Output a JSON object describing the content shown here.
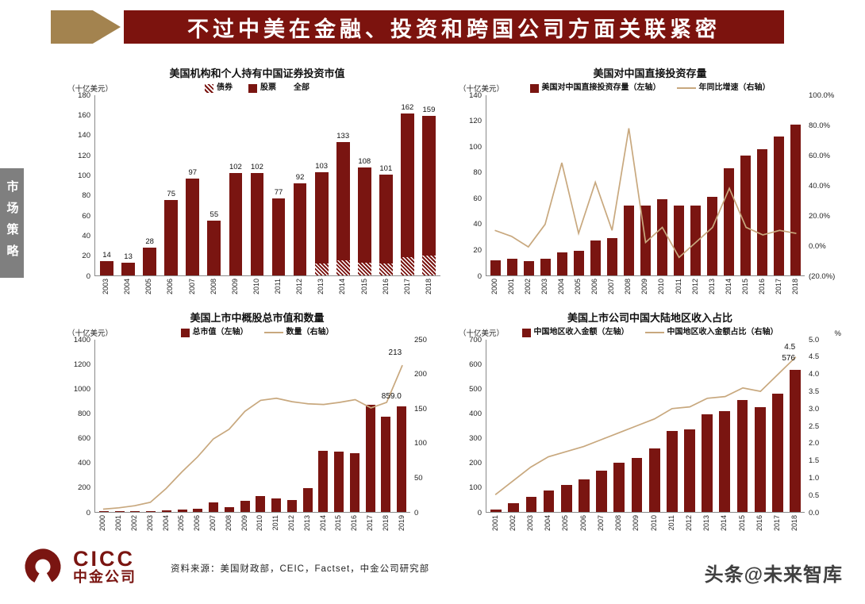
{
  "colors": {
    "maroon": "#7A1511",
    "tan": "#C8A87E",
    "banner": "#7C130E",
    "arrow": "#A3834F",
    "sidebar": "#7F7F7F"
  },
  "header": {
    "title": "不过中美在金融、投资和跨国公司方面关联紧密"
  },
  "sidebar": {
    "label": "市场策略"
  },
  "footer": {
    "logo_en": "CICC",
    "logo_cn": "中金公司",
    "source": "资料来源：美国财政部，CEIC，Factset，中金公司研究部",
    "watermark": "头条@未来智库"
  },
  "chart_data": [
    {
      "type": "bar",
      "title": "美国机构和个人持有中国证券投资市值",
      "unit_left": "（十亿美元）",
      "legend": [
        {
          "label": "债券",
          "swatch": "hatch"
        },
        {
          "label": "股票",
          "swatch": "bar"
        },
        {
          "label": "全部",
          "swatch": "none"
        }
      ],
      "categories": [
        "2003",
        "2004",
        "2005",
        "2006",
        "2007",
        "2008",
        "2009",
        "2010",
        "2011",
        "2012",
        "2013",
        "2014",
        "2015",
        "2016",
        "2017",
        "2018"
      ],
      "bars": [
        14,
        13,
        28,
        75,
        97,
        55,
        102,
        102,
        77,
        92,
        103,
        133,
        108,
        101,
        162,
        159
      ],
      "bonds": [
        0,
        0,
        0,
        0,
        0,
        0,
        0,
        0,
        0,
        0,
        12,
        15,
        13,
        12,
        18,
        20
      ],
      "bar_labels": true,
      "left": {
        "min": 0,
        "max": 180,
        "ticks": [
          0,
          20,
          40,
          60,
          80,
          100,
          120,
          140,
          160,
          180
        ]
      }
    },
    {
      "type": "bar+line",
      "title": "美国对中国直接投资存量",
      "unit_left": "（十亿美元）",
      "legend": [
        {
          "label": "美国对中国直接投资存量（左轴）",
          "swatch": "bar"
        },
        {
          "label": "年同比增速（右轴）",
          "swatch": "line"
        }
      ],
      "categories": [
        "2000",
        "2001",
        "2002",
        "2003",
        "2004",
        "2005",
        "2006",
        "2007",
        "2008",
        "2009",
        "2010",
        "2011",
        "2012",
        "2013",
        "2014",
        "2015",
        "2016",
        "2017",
        "2018"
      ],
      "bars": [
        12,
        13,
        11,
        13,
        18,
        19,
        27,
        29,
        54,
        54,
        59,
        54,
        54,
        61,
        83,
        93,
        98,
        108,
        117
      ],
      "line": [
        10,
        6,
        -1,
        14,
        55,
        8,
        42,
        10,
        78,
        2,
        12,
        -8,
        2,
        12,
        38,
        12,
        7,
        10,
        8
      ],
      "left": {
        "min": 0,
        "max": 140,
        "ticks": [
          0,
          20,
          40,
          60,
          80,
          100,
          120,
          140
        ]
      },
      "right": {
        "min": -20,
        "max": 100,
        "ticks": [
          100,
          80,
          60,
          40,
          20,
          0,
          -20
        ],
        "labels": [
          "100.0%",
          "80.0%",
          "60.0%",
          "40.0%",
          "20.0%",
          "0.0%",
          "(20.0%)"
        ]
      }
    },
    {
      "type": "bar+line",
      "title": "美国上市中概股总市值和数量",
      "unit_left": "（十亿美元）",
      "legend": [
        {
          "label": "总市值（左轴）",
          "swatch": "bar"
        },
        {
          "label": "数量（右轴）",
          "swatch": "line"
        }
      ],
      "categories": [
        "2000",
        "2001",
        "2002",
        "2003",
        "2004",
        "2005",
        "2006",
        "2007",
        "2008",
        "2009",
        "2010",
        "2011",
        "2012",
        "2013",
        "2014",
        "2015",
        "2016",
        "2017",
        "2018",
        "2019"
      ],
      "bars": [
        6,
        5,
        5,
        8,
        14,
        18,
        28,
        80,
        42,
        88,
        130,
        112,
        98,
        192,
        500,
        492,
        478,
        868,
        772,
        859
      ],
      "line": [
        4,
        6,
        9,
        14,
        34,
        58,
        80,
        106,
        120,
        146,
        162,
        165,
        160,
        157,
        156,
        159,
        163,
        151,
        159,
        213
      ],
      "left": {
        "min": 0,
        "max": 1400,
        "ticks": [
          0,
          200,
          400,
          600,
          800,
          1000,
          1200,
          1400
        ]
      },
      "right": {
        "min": 0,
        "max": 250,
        "ticks": [
          0,
          50,
          100,
          150,
          200,
          250
        ]
      },
      "annotations": [
        {
          "text": "213",
          "index": 19,
          "axis": "right",
          "value": 222
        },
        {
          "text": "859.0",
          "index": 19,
          "axis": "left",
          "value": 890
        }
      ]
    },
    {
      "type": "bar+line",
      "title": "美国上市公司中国大陆地区收入占比",
      "unit_left": "（十亿美元）",
      "unit_right": "%",
      "legend": [
        {
          "label": "中国地区收入金额（左轴）",
          "swatch": "bar"
        },
        {
          "label": "中国地区收入金额占比（右轴）",
          "swatch": "line"
        }
      ],
      "categories": [
        "2001",
        "2002",
        "2003",
        "2004",
        "2005",
        "2006",
        "2007",
        "2008",
        "2009",
        "2010",
        "2011",
        "2012",
        "2013",
        "2014",
        "2015",
        "2016",
        "2017",
        "2018"
      ],
      "bars": [
        10,
        35,
        60,
        88,
        110,
        132,
        168,
        200,
        218,
        258,
        330,
        335,
        398,
        410,
        455,
        425,
        480,
        576
      ],
      "line": [
        0.5,
        0.9,
        1.3,
        1.6,
        1.75,
        1.9,
        2.1,
        2.3,
        2.5,
        2.7,
        3.0,
        3.05,
        3.3,
        3.35,
        3.6,
        3.5,
        4.0,
        4.5
      ],
      "left": {
        "min": 0,
        "max": 700,
        "ticks": [
          0,
          100,
          200,
          300,
          400,
          500,
          600,
          700
        ]
      },
      "right": {
        "min": 0,
        "max": 5,
        "ticks": [
          0,
          0.5,
          1,
          1.5,
          2,
          2.5,
          3,
          3.5,
          4,
          4.5,
          5
        ],
        "labels": [
          "0.0",
          "0.5",
          "1.0",
          "1.5",
          "2.0",
          "2.5",
          "3.0",
          "3.5",
          "4.0",
          "4.5",
          "5.0"
        ]
      },
      "annotations": [
        {
          "text": "4.5",
          "index": 17,
          "axis": "right",
          "value": 4.62
        },
        {
          "text": "576",
          "index": 17,
          "axis": "left",
          "value": 600
        }
      ]
    }
  ]
}
